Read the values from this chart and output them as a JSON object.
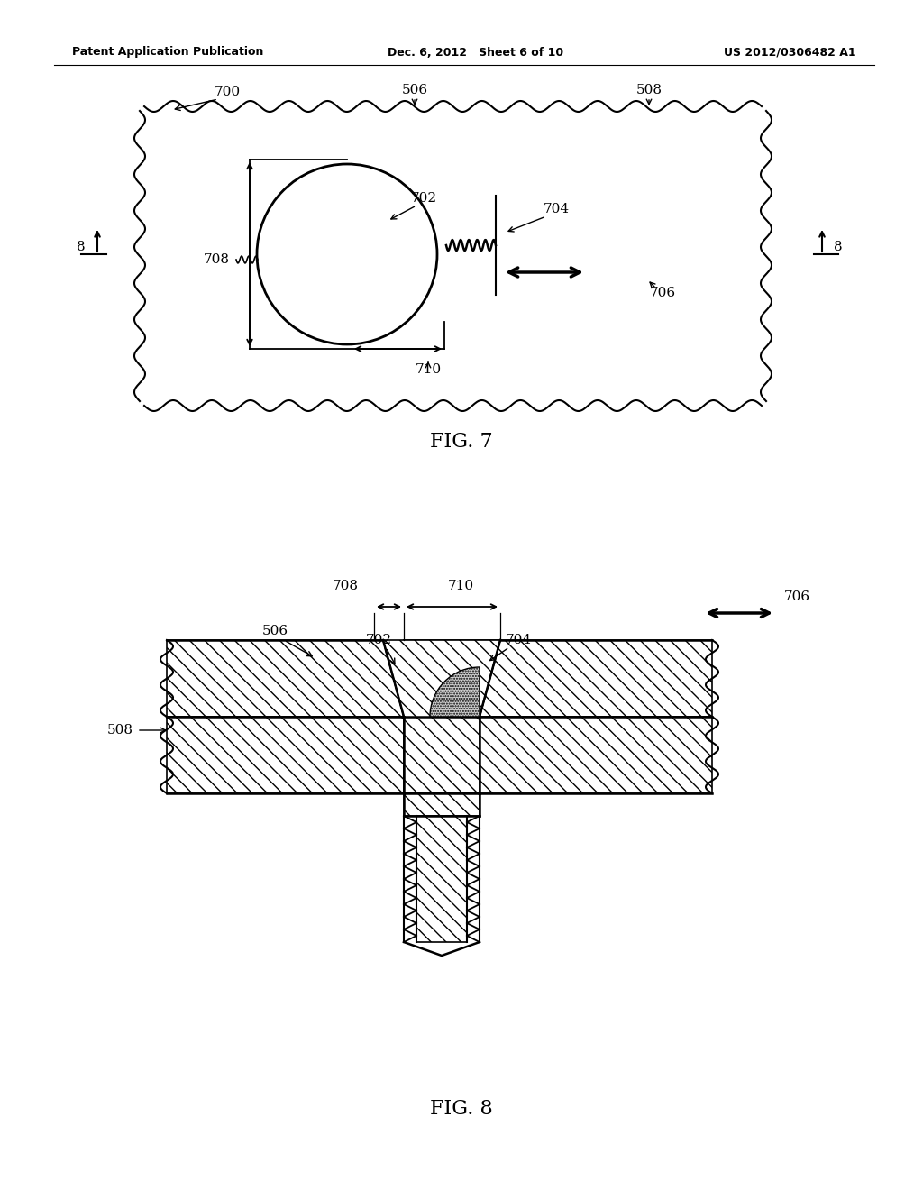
{
  "bg_color": "#ffffff",
  "line_color": "#000000",
  "header_left": "Patent Application Publication",
  "header_mid": "Dec. 6, 2012   Sheet 6 of 10",
  "header_right": "US 2012/0306482 A1",
  "fig7_label": "FIG. 7",
  "fig8_label": "FIG. 8"
}
